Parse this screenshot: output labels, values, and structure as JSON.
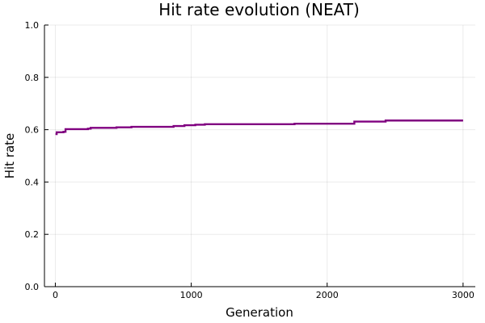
{
  "chart_data": {
    "type": "line",
    "title": "Hit rate evolution (NEAT)",
    "xlabel": "Generation",
    "ylabel": "Hit rate",
    "xlim": [
      -80,
      3090
    ],
    "ylim": [
      0,
      1
    ],
    "x_ticks": [
      {
        "value": 0,
        "label": "0"
      },
      {
        "value": 1000,
        "label": "1000"
      },
      {
        "value": 2000,
        "label": "2000"
      },
      {
        "value": 3000,
        "label": "3000"
      }
    ],
    "y_ticks": [
      {
        "value": 0,
        "label": "0.0"
      },
      {
        "value": 0.2,
        "label": "0.2"
      },
      {
        "value": 0.4,
        "label": "0.4"
      },
      {
        "value": 0.6,
        "label": "0.6"
      },
      {
        "value": 0.8,
        "label": "0.8"
      },
      {
        "value": 1.0,
        "label": "1.0"
      }
    ],
    "grid": true,
    "legend": "none",
    "series": [
      {
        "color": "#800080",
        "step": true,
        "points": [
          [
            1,
            0.583
          ],
          [
            10,
            0.59
          ],
          [
            60,
            0.592
          ],
          [
            75,
            0.602
          ],
          [
            240,
            0.604
          ],
          [
            260,
            0.607
          ],
          [
            430,
            0.607
          ],
          [
            450,
            0.609
          ],
          [
            560,
            0.611
          ],
          [
            850,
            0.611
          ],
          [
            870,
            0.614
          ],
          [
            950,
            0.617
          ],
          [
            1030,
            0.619
          ],
          [
            1100,
            0.621
          ],
          [
            1740,
            0.621
          ],
          [
            1760,
            0.623
          ],
          [
            2180,
            0.623
          ],
          [
            2200,
            0.631
          ],
          [
            2420,
            0.631
          ],
          [
            2430,
            0.635
          ],
          [
            3000,
            0.635
          ]
        ]
      }
    ]
  }
}
